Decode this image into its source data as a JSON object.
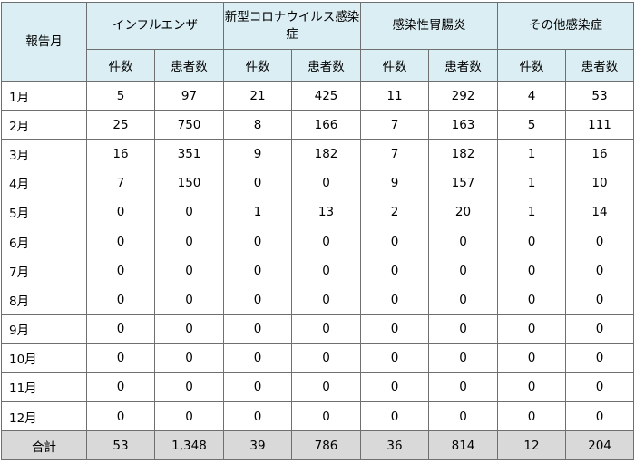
{
  "table": {
    "month_header": "報告月",
    "groups": [
      {
        "label": "インフルエンザ"
      },
      {
        "label": "新型コロナウイルス感染症"
      },
      {
        "label": "感染性胃腸炎"
      },
      {
        "label": "その他感染症"
      }
    ],
    "sub_headers": [
      "件数",
      "患者数",
      "件数",
      "患者数",
      "件数",
      "患者数",
      "件数",
      "患者数"
    ],
    "rows": [
      {
        "month": "1月",
        "values": [
          "5",
          "97",
          "21",
          "425",
          "11",
          "292",
          "4",
          "53"
        ]
      },
      {
        "month": "2月",
        "values": [
          "25",
          "750",
          "8",
          "166",
          "7",
          "163",
          "5",
          "111"
        ]
      },
      {
        "month": "3月",
        "values": [
          "16",
          "351",
          "9",
          "182",
          "7",
          "182",
          "1",
          "16"
        ]
      },
      {
        "month": "4月",
        "values": [
          "7",
          "150",
          "0",
          "0",
          "9",
          "157",
          "1",
          "10"
        ]
      },
      {
        "month": "5月",
        "values": [
          "0",
          "0",
          "1",
          "13",
          "2",
          "20",
          "1",
          "14"
        ]
      },
      {
        "month": "6月",
        "values": [
          "0",
          "0",
          "0",
          "0",
          "0",
          "0",
          "0",
          "0"
        ]
      },
      {
        "month": "7月",
        "values": [
          "0",
          "0",
          "0",
          "0",
          "0",
          "0",
          "0",
          "0"
        ]
      },
      {
        "month": "8月",
        "values": [
          "0",
          "0",
          "0",
          "0",
          "0",
          "0",
          "0",
          "0"
        ]
      },
      {
        "month": "9月",
        "values": [
          "0",
          "0",
          "0",
          "0",
          "0",
          "0",
          "0",
          "0"
        ]
      },
      {
        "month": "10月",
        "values": [
          "0",
          "0",
          "0",
          "0",
          "0",
          "0",
          "0",
          "0"
        ]
      },
      {
        "month": "11月",
        "values": [
          "0",
          "0",
          "0",
          "0",
          "0",
          "0",
          "0",
          "0"
        ]
      },
      {
        "month": "12月",
        "values": [
          "0",
          "0",
          "0",
          "0",
          "0",
          "0",
          "0",
          "0"
        ]
      }
    ],
    "total": {
      "label": "合計",
      "values": [
        "53",
        "1,348",
        "39",
        "786",
        "36",
        "814",
        "12",
        "204"
      ]
    }
  },
  "colors": {
    "header_background": "#dbeef4",
    "total_background": "#d9d9d9",
    "border": "#6f6f6f"
  }
}
